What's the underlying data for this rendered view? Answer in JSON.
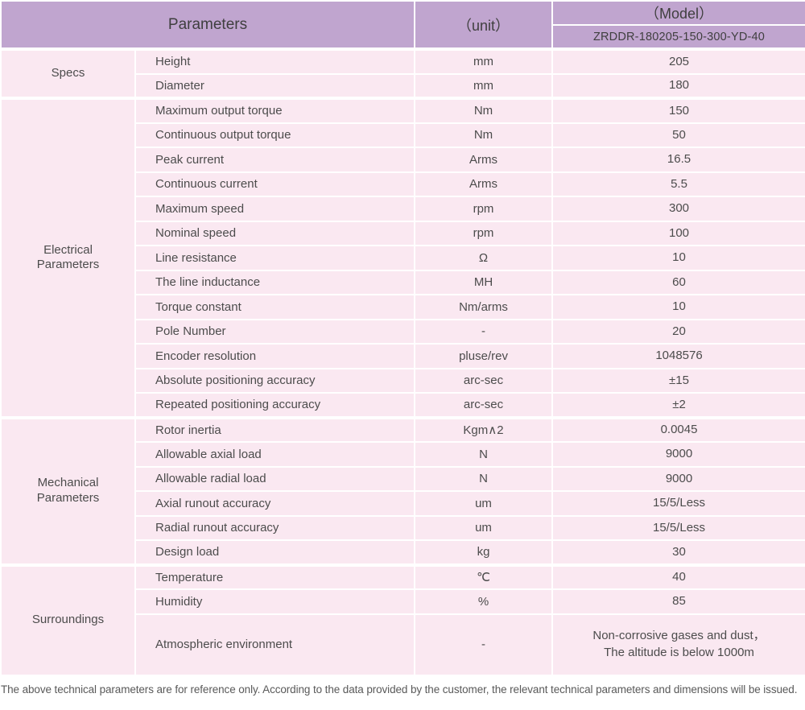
{
  "table": {
    "header": {
      "parameters": "Parameters",
      "unit": "（unit）",
      "model_title": "（Model）",
      "model_number": "ZRDDR-180205-150-300-YD-40"
    },
    "groups": [
      {
        "label": "Specs",
        "rows": [
          {
            "param": "Height",
            "unit": "mm",
            "value": "205"
          },
          {
            "param": "Diameter",
            "unit": "mm",
            "value": "180"
          }
        ]
      },
      {
        "label": "Electrical\nParameters",
        "rows": [
          {
            "param": "Maximum output torque",
            "unit": "Nm",
            "value": "150"
          },
          {
            "param": "Continuous output torque",
            "unit": "Nm",
            "value": "50"
          },
          {
            "param": "Peak current",
            "unit": "Arms",
            "value": "16.5"
          },
          {
            "param": "Continuous current",
            "unit": "Arms",
            "value": "5.5"
          },
          {
            "param": "Maximum speed",
            "unit": "rpm",
            "value": "300"
          },
          {
            "param": "Nominal speed",
            "unit": "rpm",
            "value": "100"
          },
          {
            "param": "Line resistance",
            "unit": "Ω",
            "value": "10"
          },
          {
            "param": "The line inductance",
            "unit": "MH",
            "value": "60"
          },
          {
            "param": "Torque constant",
            "unit": "Nm/arms",
            "value": "10"
          },
          {
            "param": "Pole Number",
            "unit": "-",
            "value": "20"
          },
          {
            "param": "Encoder resolution",
            "unit": "pluse/rev",
            "value": "1048576"
          },
          {
            "param": "Absolute positioning accuracy",
            "unit": "arc-sec",
            "value": "±15"
          },
          {
            "param": "Repeated positioning accuracy",
            "unit": "arc-sec",
            "value": "±2"
          }
        ]
      },
      {
        "label": "Mechanical\nParameters",
        "rows": [
          {
            "param": "Rotor inertia",
            "unit": "Kgm∧2",
            "value": "0.0045"
          },
          {
            "param": "Allowable axial load",
            "unit": "N",
            "value": "9000"
          },
          {
            "param": "Allowable radial load",
            "unit": "N",
            "value": "9000"
          },
          {
            "param": "Axial runout accuracy",
            "unit": "um",
            "value": "15/5/Less"
          },
          {
            "param": "Radial runout accuracy",
            "unit": "um",
            "value": "15/5/Less"
          },
          {
            "param": "Design load",
            "unit": "kg",
            "value": "30"
          }
        ]
      },
      {
        "label": "Surroundings",
        "rows": [
          {
            "param": "Temperature",
            "unit": "℃",
            "value": "40"
          },
          {
            "param": "Humidity",
            "unit": "%",
            "value": "85"
          },
          {
            "param": "Atmospheric environment",
            "unit": "-",
            "value": "Non-corrosive gases and dust，\nThe altitude is below 1000m"
          }
        ]
      }
    ]
  },
  "footer": {
    "note": "The above technical parameters are for reference only. According to the data provided by the customer, the relevant technical parameters and dimensions will be issued."
  },
  "colors": {
    "header_bg": "#c0a5cf",
    "row_bg": "#fae8f1",
    "body_text": "#4c4c4c",
    "note_text": "#595959"
  }
}
